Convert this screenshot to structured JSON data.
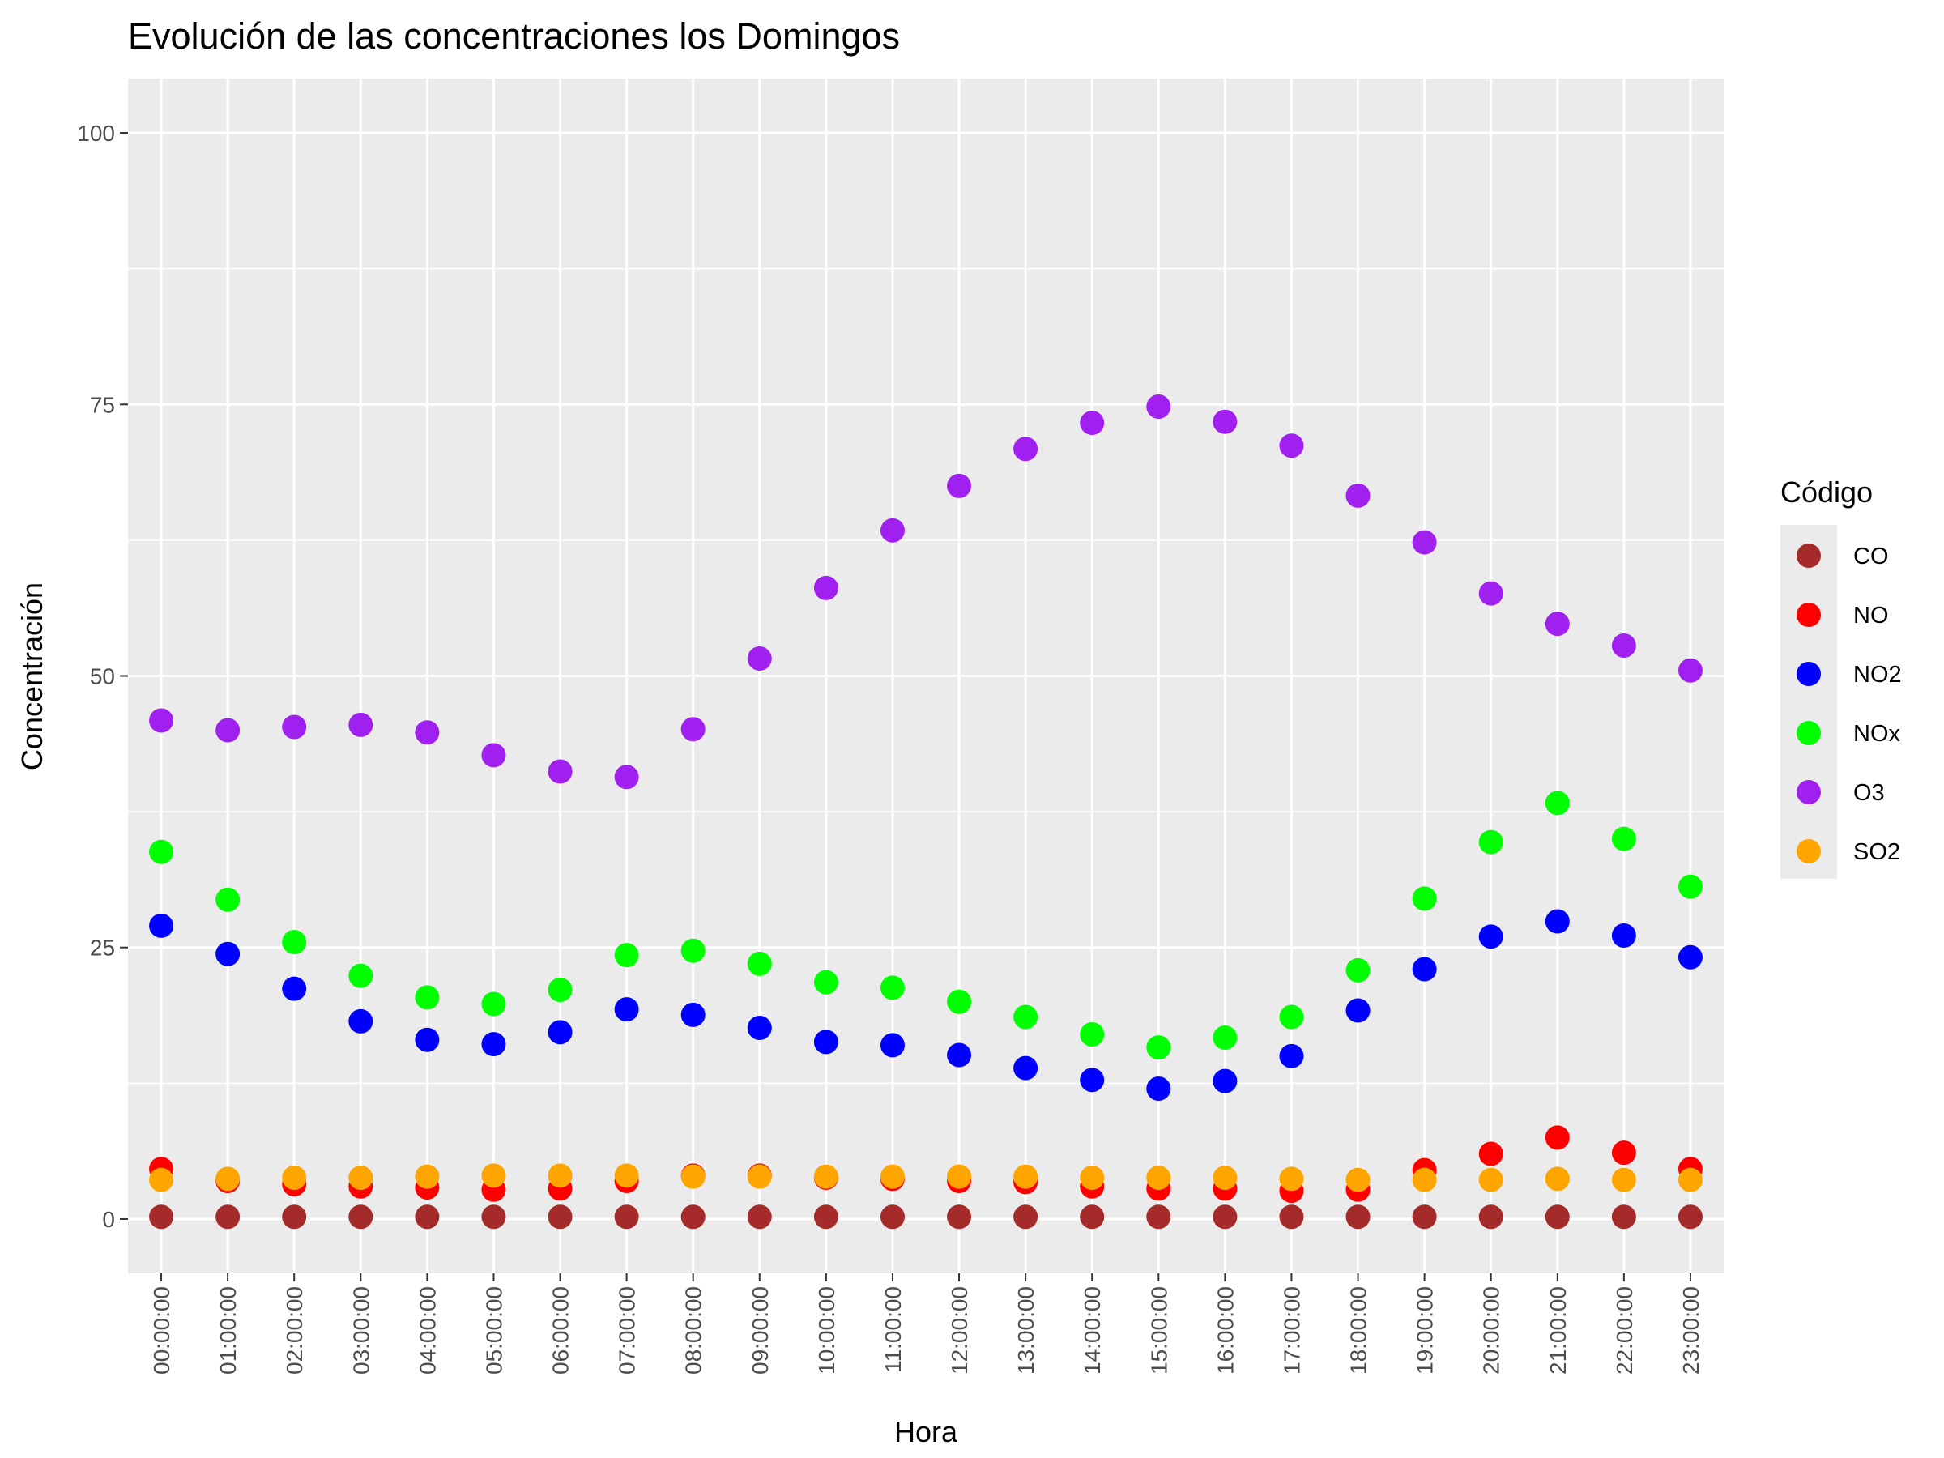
{
  "chart_data": {
    "type": "scatter",
    "title": "Evolución de las concentraciones los Domingos",
    "xlabel": "Hora",
    "ylabel": "Concentración",
    "ylim": [
      -5,
      105
    ],
    "yticks": [
      0,
      25,
      50,
      75,
      100
    ],
    "grid": true,
    "legend_title": "Código",
    "legend_position": "right",
    "categories": [
      "00:00:00",
      "01:00:00",
      "02:00:00",
      "03:00:00",
      "04:00:00",
      "05:00:00",
      "06:00:00",
      "07:00:00",
      "08:00:00",
      "09:00:00",
      "10:00:00",
      "11:00:00",
      "12:00:00",
      "13:00:00",
      "14:00:00",
      "15:00:00",
      "16:00:00",
      "17:00:00",
      "18:00:00",
      "19:00:00",
      "20:00:00",
      "21:00:00",
      "22:00:00",
      "23:00:00"
    ],
    "series": [
      {
        "name": "CO",
        "color": "#a52a2a",
        "values": [
          0.2,
          0.2,
          0.2,
          0.2,
          0.2,
          0.2,
          0.2,
          0.2,
          0.2,
          0.2,
          0.2,
          0.2,
          0.2,
          0.2,
          0.2,
          0.2,
          0.2,
          0.2,
          0.2,
          0.2,
          0.2,
          0.2,
          0.2,
          0.2
        ]
      },
      {
        "name": "NO",
        "color": "#ff0000",
        "values": [
          4.6,
          3.5,
          3.2,
          3.0,
          2.9,
          2.7,
          2.8,
          3.5,
          4.0,
          4.0,
          3.8,
          3.7,
          3.5,
          3.4,
          3.0,
          2.8,
          2.8,
          2.6,
          2.7,
          4.5,
          6.0,
          7.5,
          6.1,
          4.6
        ]
      },
      {
        "name": "NO2",
        "color": "#0000ff",
        "values": [
          27.0,
          24.4,
          21.2,
          18.2,
          16.5,
          16.1,
          17.2,
          19.3,
          18.8,
          17.6,
          16.3,
          16.0,
          15.1,
          13.9,
          12.8,
          12.0,
          12.7,
          15.0,
          19.2,
          23.0,
          26.0,
          27.4,
          26.1,
          24.1
        ]
      },
      {
        "name": "NOx",
        "color": "#00ff00",
        "values": [
          33.8,
          29.4,
          25.5,
          22.4,
          20.4,
          19.8,
          21.1,
          24.3,
          24.7,
          23.5,
          21.8,
          21.3,
          20.0,
          18.6,
          17.0,
          15.8,
          16.7,
          18.6,
          22.9,
          29.5,
          34.7,
          38.3,
          35.0,
          30.6
        ]
      },
      {
        "name": "O3",
        "color": "#a020f0",
        "values": [
          45.9,
          45.0,
          45.3,
          45.5,
          44.8,
          42.7,
          41.2,
          40.7,
          45.1,
          51.6,
          58.1,
          63.4,
          67.5,
          70.9,
          73.3,
          74.8,
          73.4,
          71.2,
          66.6,
          62.3,
          57.6,
          54.8,
          52.8,
          50.5
        ]
      },
      {
        "name": "SO2",
        "color": "#ffa500",
        "values": [
          3.6,
          3.7,
          3.8,
          3.8,
          3.9,
          4.0,
          4.0,
          4.0,
          3.9,
          3.9,
          3.9,
          3.9,
          3.9,
          3.9,
          3.8,
          3.8,
          3.8,
          3.7,
          3.6,
          3.6,
          3.6,
          3.7,
          3.6,
          3.6
        ]
      }
    ]
  }
}
